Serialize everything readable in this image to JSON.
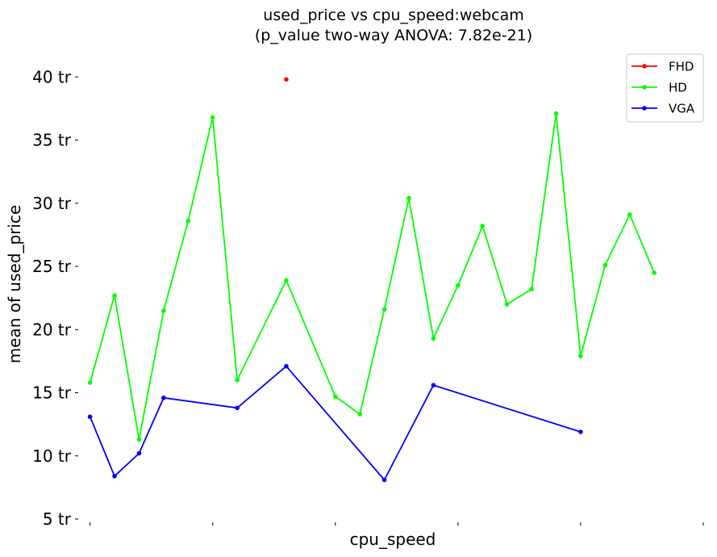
{
  "chart_data": {
    "type": "line",
    "title_line1": "used_price vs cpu_speed:webcam",
    "title_line2": "(p_value two-way ANOVA: 7.82e-21)",
    "xlabel": "cpu_speed",
    "ylabel": "mean of used_price",
    "y_tick_values": [
      5,
      10,
      15,
      20,
      25,
      30,
      35,
      40
    ],
    "y_tick_labels": [
      "5 tr",
      "10 tr",
      "15 tr",
      "20 tr",
      "25 tr",
      "30 tr",
      "35 tr",
      "40 tr"
    ],
    "ylim": [
      5,
      42
    ],
    "xlim": [
      -0.25,
      25
    ],
    "x_tick_positions": [
      0,
      5,
      10,
      15,
      20,
      25
    ],
    "x_tick_labels": [
      "",
      "",
      "",
      "",
      "",
      ""
    ],
    "grid": false,
    "legend_position": "top-right",
    "series": [
      {
        "name": "FHD",
        "color": "#ff0000",
        "x": [
          8
        ],
        "y": [
          39.8
        ]
      },
      {
        "name": "HD",
        "color": "#00ff00",
        "x": [
          0,
          1,
          2,
          3,
          4,
          5,
          6,
          8,
          10,
          11,
          12,
          13,
          14,
          15,
          16,
          17,
          18,
          19,
          20,
          21,
          22,
          23
        ],
        "y": [
          15.8,
          22.7,
          11.3,
          21.5,
          28.6,
          36.8,
          16.0,
          23.9,
          14.7,
          13.3,
          21.6,
          30.4,
          19.3,
          23.5,
          28.2,
          22.0,
          23.2,
          37.1,
          17.9,
          25.1,
          29.1,
          24.5
        ]
      },
      {
        "name": "VGA",
        "color": "#0000ff",
        "x": [
          0,
          1,
          2,
          3,
          6,
          8,
          12,
          14,
          20
        ],
        "y": [
          13.1,
          8.4,
          10.2,
          14.6,
          13.8,
          17.1,
          8.1,
          15.6,
          11.9
        ]
      }
    ]
  }
}
